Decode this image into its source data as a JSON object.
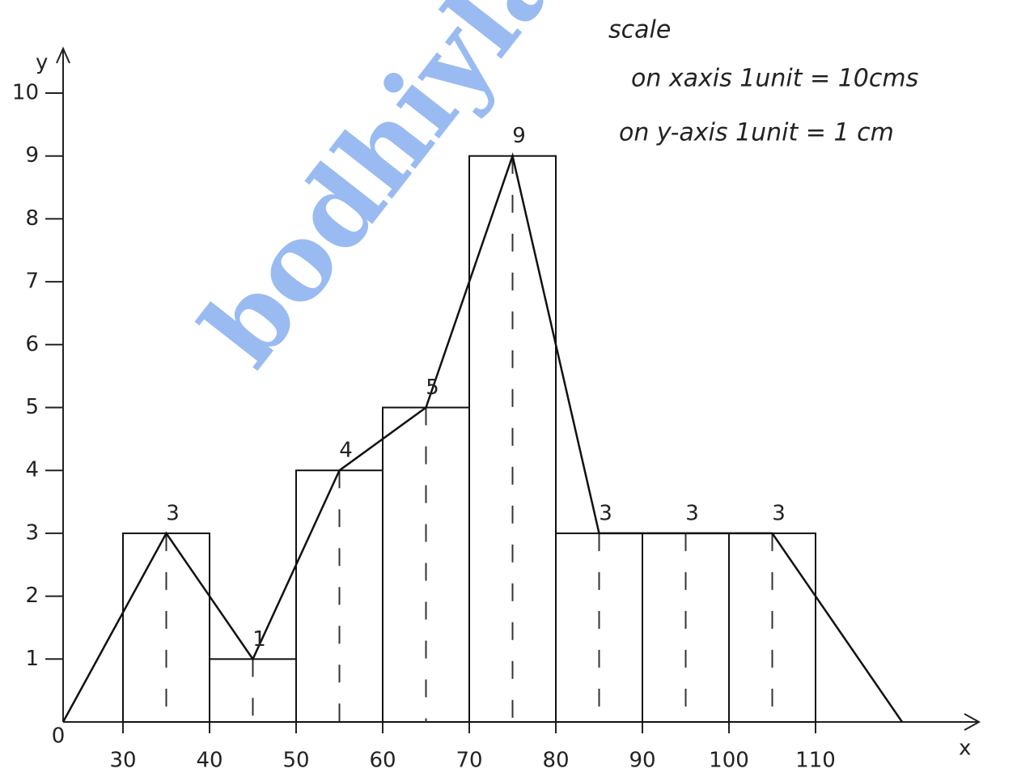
{
  "chart_data": {
    "type": "histogram",
    "watermark": "bodhiyla.",
    "annotations": [
      "scale",
      "on xaxis 1unit = 10cms",
      "on y-axis 1unit = 1 cm"
    ],
    "xlabel": "x",
    "ylabel": "y",
    "bins": [
      30,
      40,
      50,
      60,
      70,
      80,
      90,
      100,
      110
    ],
    "values": [
      3,
      1,
      4,
      5,
      9,
      3,
      3,
      3
    ],
    "polygon": {
      "x": [
        0,
        35,
        45,
        55,
        65,
        75,
        85,
        95,
        105,
        120
      ],
      "y": [
        0,
        3,
        1,
        4,
        5,
        9,
        3,
        3,
        3,
        0
      ]
    },
    "xlim": [
      0,
      120
    ],
    "xticks": [
      0,
      30,
      40,
      50,
      60,
      70,
      80,
      90,
      100,
      110
    ],
    "ylim": [
      0,
      10
    ],
    "yticks": [
      1,
      2,
      3,
      4,
      5,
      6,
      7,
      8,
      9,
      10
    ],
    "color": "#111111",
    "grid": false
  }
}
